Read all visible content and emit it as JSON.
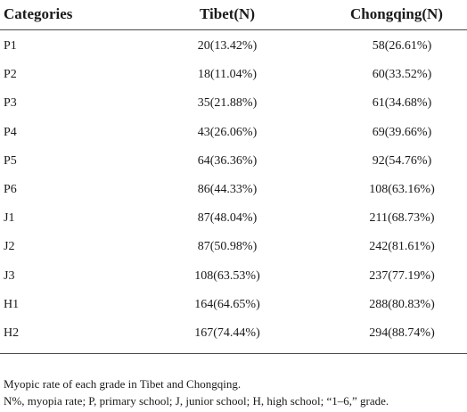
{
  "table": {
    "headers": {
      "category": "Categories",
      "tibet": "Tibet(N)",
      "chongqing": "Chongqing(N)"
    },
    "rows": [
      {
        "category": "P1",
        "tibet": "20(13.42%)",
        "chongqing": "58(26.61%)"
      },
      {
        "category": "P2",
        "tibet": "18(11.04%)",
        "chongqing": "60(33.52%)"
      },
      {
        "category": "P3",
        "tibet": "35(21.88%)",
        "chongqing": "61(34.68%)"
      },
      {
        "category": "P4",
        "tibet": "43(26.06%)",
        "chongqing": "69(39.66%)"
      },
      {
        "category": "P5",
        "tibet": "64(36.36%)",
        "chongqing": "92(54.76%)"
      },
      {
        "category": "P6",
        "tibet": "86(44.33%)",
        "chongqing": "108(63.16%)"
      },
      {
        "category": "J1",
        "tibet": "87(48.04%)",
        "chongqing": "211(68.73%)"
      },
      {
        "category": "J2",
        "tibet": "87(50.98%)",
        "chongqing": "242(81.61%)"
      },
      {
        "category": "J3",
        "tibet": "108(63.53%)",
        "chongqing": "237(77.19%)"
      },
      {
        "category": "H1",
        "tibet": "164(64.65%)",
        "chongqing": "288(80.83%)"
      },
      {
        "category": "H2",
        "tibet": "167(74.44%)",
        "chongqing": "294(88.74%)"
      }
    ]
  },
  "footnotes": {
    "caption": "Myopic rate of each grade in Tibet and Chongqing.",
    "legend": "N%, myopia rate; P, primary school; J, junior school; H, high school; “1–6,” grade."
  }
}
